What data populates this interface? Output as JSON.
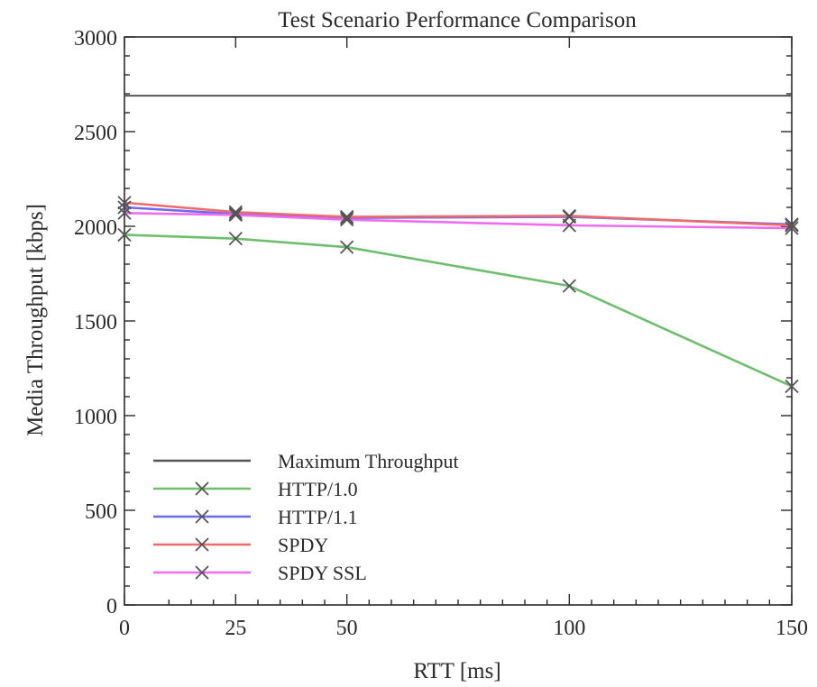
{
  "chart_data": {
    "type": "line",
    "title": "Test Scenario Performance Comparison",
    "xlabel": "RTT [ms]",
    "ylabel": "Media Throughput [kbps]",
    "xlim": [
      0,
      150
    ],
    "ylim": [
      0,
      3000
    ],
    "xticks": [
      0,
      25,
      50,
      100,
      150
    ],
    "xtick_labels": [
      "0",
      "25",
      "50",
      "100",
      "150"
    ],
    "yticks": [
      0,
      500,
      1000,
      1500,
      2000,
      2500,
      3000
    ],
    "ytick_labels": [
      "0",
      "500",
      "1000",
      "1500",
      "2000",
      "2500",
      "3000"
    ],
    "grid": false,
    "legend_position": "bottom-left",
    "x": [
      0,
      25,
      50,
      100,
      150
    ],
    "series": [
      {
        "name": "Maximum Throughput",
        "color": "#555555",
        "marker": "none",
        "x": [
          0,
          150
        ],
        "values": [
          2690,
          2690
        ]
      },
      {
        "name": "HTTP/1.0",
        "color": "#6dbf6d",
        "marker": "x",
        "x": [
          0,
          25,
          50,
          100,
          150
        ],
        "values": [
          1955,
          1935,
          1890,
          1685,
          1155
        ]
      },
      {
        "name": "HTTP/1.1",
        "color": "#6b6bef",
        "marker": "x",
        "x": [
          0,
          25,
          50,
          100,
          150
        ],
        "values": [
          2100,
          2065,
          2045,
          2050,
          2010
        ]
      },
      {
        "name": "SPDY",
        "color": "#ef6b6b",
        "marker": "x",
        "x": [
          0,
          25,
          50,
          100,
          150
        ],
        "values": [
          2125,
          2075,
          2050,
          2055,
          2005
        ]
      },
      {
        "name": "SPDY SSL",
        "color": "#ef6bef",
        "marker": "x",
        "x": [
          0,
          25,
          50,
          100,
          150
        ],
        "values": [
          2070,
          2060,
          2035,
          2005,
          1990
        ]
      }
    ]
  }
}
